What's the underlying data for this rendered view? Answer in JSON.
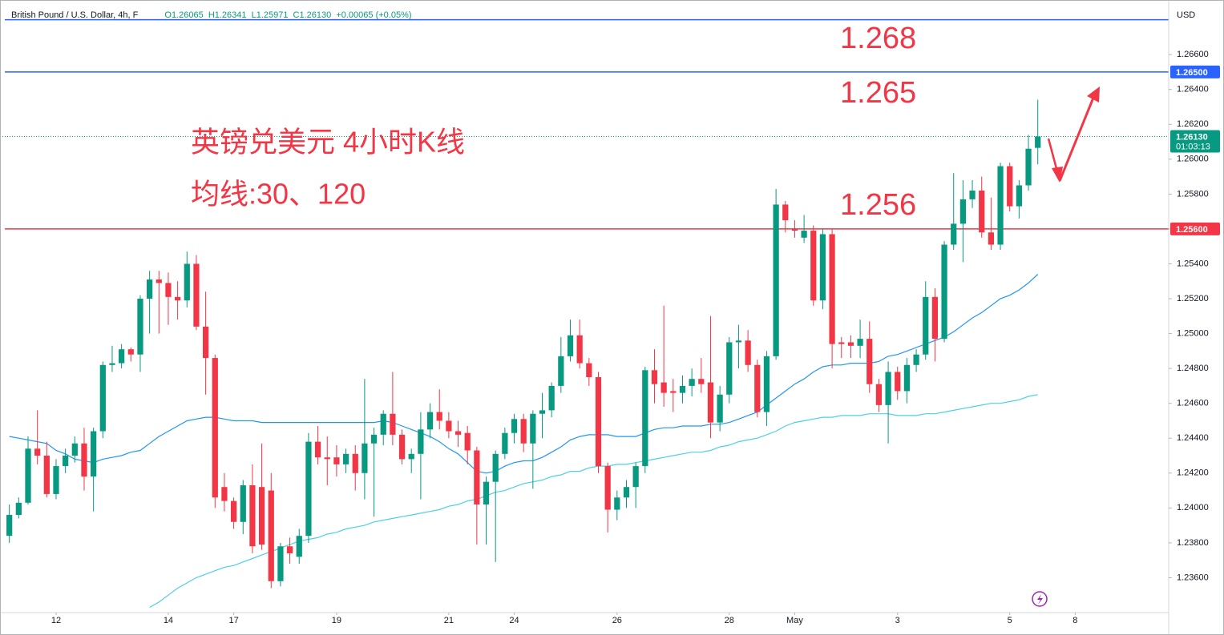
{
  "header": {
    "symbol": "British Pound / U.S. Dollar, 4h, F",
    "open": "O1.26065",
    "high": "H1.26341",
    "low": "L1.25971",
    "close": "C1.26130",
    "change": "+0.00065 (+0.05%)"
  },
  "annotations": {
    "title": "英镑兑美元 4小时K线",
    "subtitle": "均线:30、120",
    "level_1": "1.268",
    "level_2": "1.265",
    "level_3": "1.256"
  },
  "chart_data": {
    "type": "candlestick",
    "currency": "USD",
    "up_color": "#089981",
    "down_color": "#f23645",
    "xlim": [
      -1,
      124
    ],
    "ylim": [
      1.234,
      1.2689
    ],
    "xticks": [
      {
        "value": 5,
        "label": "12"
      },
      {
        "value": 17,
        "label": "14"
      },
      {
        "value": 24,
        "label": "17"
      },
      {
        "value": 35,
        "label": "19"
      },
      {
        "value": 47,
        "label": "21"
      },
      {
        "value": 54,
        "label": "24"
      },
      {
        "value": 65,
        "label": "26"
      },
      {
        "value": 77,
        "label": "28"
      },
      {
        "value": 84,
        "label": "May"
      },
      {
        "value": 95,
        "label": "3"
      },
      {
        "value": 107,
        "label": "5"
      },
      {
        "value": 114,
        "label": "8"
      }
    ],
    "yticks": [
      {
        "value": 1.236,
        "label": "1.23600"
      },
      {
        "value": 1.238,
        "label": "1.23800"
      },
      {
        "value": 1.24,
        "label": "1.24000"
      },
      {
        "value": 1.242,
        "label": "1.24200"
      },
      {
        "value": 1.244,
        "label": "1.24400"
      },
      {
        "value": 1.246,
        "label": "1.24600"
      },
      {
        "value": 1.248,
        "label": "1.24800"
      },
      {
        "value": 1.25,
        "label": "1.25000"
      },
      {
        "value": 1.252,
        "label": "1.25200"
      },
      {
        "value": 1.254,
        "label": "1.25400"
      },
      {
        "value": 1.256,
        "label": "1.25600"
      },
      {
        "value": 1.258,
        "label": "1.25800"
      },
      {
        "value": 1.26,
        "label": "1.26000"
      },
      {
        "value": 1.262,
        "label": "1.26200"
      },
      {
        "value": 1.264,
        "label": "1.26400"
      },
      {
        "value": 1.266,
        "label": "1.26600"
      }
    ],
    "hlines": [
      {
        "value": 1.268,
        "color": "#2962ff"
      },
      {
        "value": 1.265,
        "color": "#2962ff"
      },
      {
        "value": 1.256,
        "color": "#f23645"
      }
    ],
    "price_labels": [
      {
        "value": 1.265,
        "label": "1.26500",
        "color": "#2962ff"
      },
      {
        "value": 1.256,
        "label": "1.25600",
        "color": "#f23645"
      }
    ],
    "last_price": {
      "value": 1.2613,
      "label": "1.26130",
      "countdown": "01:03:13",
      "color": "#089981"
    },
    "open": [
      1.2384,
      1.2396,
      1.2403,
      1.2434,
      1.243,
      1.2408,
      1.2424,
      1.243,
      1.2437,
      1.2418,
      1.2444,
      1.2482,
      1.2483,
      1.2491,
      1.2488,
      1.252,
      1.2531,
      1.2529,
      1.2521,
      1.2519,
      1.254,
      1.2504,
      1.2486,
      1.2412,
      1.2404,
      1.2392,
      1.2413,
      1.2412,
      1.241,
      1.2358,
      1.2378,
      1.2372,
      1.2384,
      1.2438,
      1.2429,
      1.2429,
      1.2425,
      1.2431,
      1.242,
      1.2437,
      1.2442,
      1.2454,
      1.2442,
      1.2428,
      1.2431,
      1.2445,
      1.2455,
      1.245,
      1.2444,
      1.2443,
      1.2433,
      1.2402,
      1.2415,
      1.2431,
      1.2443,
      1.2451,
      1.2437,
      1.2454,
      1.2456,
      1.247,
      1.2487,
      1.2499,
      1.2483,
      1.2475,
      1.2424,
      1.2399,
      1.2406,
      1.2412,
      1.2424,
      1.2479,
      1.2472,
      1.2467,
      1.2466,
      1.247,
      1.2474,
      1.2472,
      1.2449,
      1.2465,
      1.2495,
      1.2496,
      1.2482,
      1.2455,
      1.2487,
      1.2574,
      1.256,
      1.2555,
      1.2559,
      1.2519,
      1.2557,
      1.2495,
      1.2495,
      1.2493,
      1.2497,
      1.2471,
      1.2459,
      1.2478,
      1.2467,
      1.2482,
      1.2488,
      1.2521,
      1.2497,
      1.2551,
      1.2563,
      1.2577,
      1.2582,
      1.2558,
      1.2551,
      1.2596,
      1.2573,
      1.2585,
      1.26065
    ],
    "high": [
      1.2402,
      1.2406,
      1.2441,
      1.2456,
      1.2438,
      1.2428,
      1.2434,
      1.2441,
      1.2446,
      1.2446,
      1.2484,
      1.2493,
      1.2494,
      1.2492,
      1.2522,
      1.2536,
      1.2536,
      1.2535,
      1.253,
      1.2547,
      1.2545,
      1.2524,
      1.2488,
      1.242,
      1.2406,
      1.2416,
      1.2425,
      1.2437,
      1.242,
      1.238,
      1.2383,
      1.2388,
      1.2443,
      1.2447,
      1.2441,
      1.2436,
      1.2434,
      1.2436,
      1.2474,
      1.2446,
      1.2456,
      1.2478,
      1.2445,
      1.2434,
      1.2455,
      1.246,
      1.2468,
      1.2455,
      1.245,
      1.2447,
      1.2435,
      1.2418,
      1.2433,
      1.2446,
      1.2454,
      1.2454,
      1.2456,
      1.2466,
      1.2472,
      1.2498,
      1.2508,
      1.2508,
      1.2486,
      1.2478,
      1.2426,
      1.241,
      1.2416,
      1.2426,
      1.2481,
      1.2491,
      1.2516,
      1.2474,
      1.2476,
      1.248,
      1.2486,
      1.251,
      1.247,
      1.2498,
      1.2505,
      1.2502,
      1.2485,
      1.249,
      1.2583,
      1.2576,
      1.2565,
      1.2568,
      1.2562,
      1.256,
      1.256,
      1.2498,
      1.2499,
      1.2508,
      1.2507,
      1.2474,
      1.2484,
      1.2481,
      1.2486,
      1.2491,
      1.253,
      1.2526,
      1.2553,
      1.2592,
      1.2588,
      1.2588,
      1.259,
      1.2578,
      1.2598,
      1.2598,
      1.2588,
      1.2614,
      1.26341
    ],
    "low": [
      1.238,
      1.2394,
      1.2402,
      1.2425,
      1.2406,
      1.2405,
      1.242,
      1.2426,
      1.241,
      1.2398,
      1.244,
      1.2478,
      1.248,
      1.2484,
      1.2478,
      1.25,
      1.25,
      1.2505,
      1.2508,
      1.2515,
      1.2502,
      1.2465,
      1.24,
      1.2398,
      1.2388,
      1.2385,
      1.2374,
      1.2376,
      1.2354,
      1.2355,
      1.2368,
      1.2368,
      1.238,
      1.2425,
      1.2413,
      1.2418,
      1.242,
      1.241,
      1.2405,
      1.2395,
      1.2436,
      1.2436,
      1.2425,
      1.242,
      1.2405,
      1.244,
      1.2445,
      1.244,
      1.2435,
      1.2425,
      1.2379,
      1.2379,
      1.2369,
      1.2428,
      1.2437,
      1.2432,
      1.2411,
      1.244,
      1.2452,
      1.2466,
      1.2484,
      1.248,
      1.247,
      1.242,
      1.2386,
      1.2393,
      1.24,
      1.24,
      1.242,
      1.246,
      1.2458,
      1.2455,
      1.246,
      1.2464,
      1.2466,
      1.244,
      1.2444,
      1.246,
      1.248,
      1.2478,
      1.2452,
      1.2447,
      1.2485,
      1.2558,
      1.2555,
      1.2552,
      1.2516,
      1.2514,
      1.248,
      1.2486,
      1.2486,
      1.2486,
      1.2466,
      1.2455,
      1.2437,
      1.2462,
      1.246,
      1.2478,
      1.2485,
      1.2484,
      1.2495,
      1.2548,
      1.2541,
      1.2572,
      1.2555,
      1.2548,
      1.2548,
      1.257,
      1.2566,
      1.2582,
      1.25971
    ],
    "close": [
      1.2396,
      1.2403,
      1.2434,
      1.243,
      1.2408,
      1.2424,
      1.243,
      1.2437,
      1.2418,
      1.2444,
      1.2482,
      1.2483,
      1.2491,
      1.2488,
      1.252,
      1.2531,
      1.2529,
      1.2521,
      1.2519,
      1.254,
      1.2504,
      1.2486,
      1.2406,
      1.2404,
      1.2392,
      1.2413,
      1.2378,
      1.2379,
      1.2358,
      1.2378,
      1.2374,
      1.2384,
      1.2438,
      1.2429,
      1.2428,
      1.2425,
      1.2431,
      1.242,
      1.2437,
      1.2442,
      1.2454,
      1.2442,
      1.2428,
      1.2431,
      1.2445,
      1.2455,
      1.245,
      1.2444,
      1.2442,
      1.2433,
      1.2402,
      1.2415,
      1.2431,
      1.2443,
      1.2451,
      1.2437,
      1.2454,
      1.2456,
      1.247,
      1.2487,
      1.2499,
      1.2483,
      1.2475,
      1.2424,
      1.2399,
      1.2406,
      1.2412,
      1.2424,
      1.2479,
      1.2471,
      1.2466,
      1.2466,
      1.247,
      1.2474,
      1.2471,
      1.2449,
      1.2465,
      1.2495,
      1.2496,
      1.2482,
      1.2455,
      1.2487,
      1.2574,
      1.2565,
      1.2559,
      1.2559,
      1.2519,
      1.2557,
      1.2494,
      1.2494,
      1.2493,
      1.2497,
      1.2471,
      1.2459,
      1.2478,
      1.2467,
      1.2482,
      1.2488,
      1.2521,
      1.2497,
      1.2551,
      1.2563,
      1.2577,
      1.2582,
      1.2558,
      1.2551,
      1.2596,
      1.2573,
      1.2585,
      1.2606,
      1.2613
    ],
    "lines": [
      {
        "color": "#2196f3",
        "values": [
          1.2441,
          1.244,
          1.2439,
          1.2438,
          1.2437,
          1.2433,
          1.2431,
          1.2428,
          1.2427,
          1.2426,
          1.2428,
          1.2429,
          1.243,
          1.2432,
          1.2433,
          1.2437,
          1.2441,
          1.2444,
          1.2447,
          1.245,
          1.2451,
          1.2452,
          1.2452,
          1.2451,
          1.245,
          1.245,
          1.245,
          1.2449,
          1.2449,
          1.2449,
          1.2449,
          1.2449,
          1.2449,
          1.2449,
          1.2449,
          1.2449,
          1.2449,
          1.2449,
          1.2449,
          1.2449,
          1.245,
          1.2449,
          1.2447,
          1.2445,
          1.2443,
          1.2441,
          1.2438,
          1.2434,
          1.2431,
          1.2426,
          1.2421,
          1.242,
          1.2421,
          1.2424,
          1.2426,
          1.2427,
          1.2427,
          1.2429,
          1.2432,
          1.2435,
          1.2439,
          1.2441,
          1.2442,
          1.2442,
          1.2442,
          1.2441,
          1.2441,
          1.2441,
          1.2443,
          1.2445,
          1.2446,
          1.2446,
          1.2447,
          1.2447,
          1.2447,
          1.2448,
          1.2448,
          1.2449,
          1.2451,
          1.2453,
          1.2455,
          1.2459,
          1.2463,
          1.2467,
          1.2471,
          1.2474,
          1.2478,
          1.2481,
          1.2482,
          1.2482,
          1.2483,
          1.2483,
          1.2483,
          1.2484,
          1.2487,
          1.2488,
          1.249,
          1.2492,
          1.2494,
          1.2496,
          1.2498,
          1.2501,
          1.2505,
          1.2509,
          1.2512,
          1.2516,
          1.252,
          1.2522,
          1.2525,
          1.2529,
          1.2534
        ]
      },
      {
        "color": "#4dd0e1",
        "values": [
          null,
          null,
          null,
          null,
          null,
          null,
          null,
          null,
          null,
          null,
          null,
          null,
          null,
          null,
          null,
          1.2343,
          1.2346,
          1.235,
          1.2354,
          1.2357,
          1.236,
          1.2362,
          1.2364,
          1.2366,
          1.2367,
          1.2369,
          1.2371,
          1.2373,
          1.2375,
          1.2377,
          1.2379,
          1.2381,
          1.2382,
          1.2383,
          1.2385,
          1.2386,
          1.2388,
          1.2389,
          1.239,
          1.2392,
          1.2393,
          1.2394,
          1.2395,
          1.2396,
          1.2397,
          1.2398,
          1.2399,
          1.2401,
          1.2402,
          1.2404,
          1.2405,
          1.2407,
          1.2409,
          1.241,
          1.2412,
          1.2414,
          1.2415,
          1.2416,
          1.2418,
          1.2419,
          1.2421,
          1.2421,
          1.2423,
          1.2424,
          1.2424,
          1.2425,
          1.2425,
          1.2426,
          1.2427,
          1.2428,
          1.2429,
          1.243,
          1.2431,
          1.2432,
          1.2432,
          1.2433,
          1.2435,
          1.2436,
          1.2438,
          1.2439,
          1.244,
          1.2442,
          1.2444,
          1.2447,
          1.2449,
          1.245,
          1.2451,
          1.2452,
          1.2452,
          1.2453,
          1.2453,
          1.2453,
          1.2454,
          1.2454,
          1.2454,
          1.2453,
          1.2453,
          1.2453,
          1.2454,
          1.2454,
          1.2455,
          1.2456,
          1.2457,
          1.2458,
          1.2459,
          1.246,
          1.246,
          1.2461,
          1.2462,
          1.2464,
          1.2465
        ]
      }
    ]
  }
}
